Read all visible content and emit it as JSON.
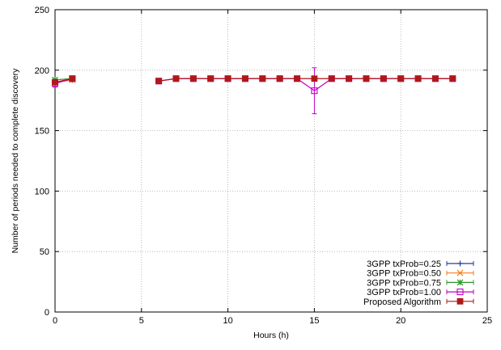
{
  "chart_data": {
    "type": "line",
    "title": "",
    "xlabel": "Hours (h)",
    "ylabel": "Number of periods needed to complete discovery",
    "xlim": [
      0,
      25
    ],
    "ylim": [
      0,
      250
    ],
    "xticks": [
      0,
      5,
      10,
      15,
      20,
      25
    ],
    "yticks": [
      0,
      50,
      100,
      150,
      200,
      250
    ],
    "grid": true,
    "legend_position": "bottom-right",
    "series": [
      {
        "name": "3GPP txProb=0.25",
        "color": "#1f3fa0",
        "marker": "plus",
        "points": [
          {
            "x": 0,
            "y": 190,
            "err": 1
          },
          {
            "x": 1,
            "y": 192,
            "err": 1
          }
        ]
      },
      {
        "name": "3GPP txProb=0.50",
        "color": "#f07f20",
        "marker": "cross",
        "points": [
          {
            "x": 0,
            "y": 190,
            "err": 1
          },
          {
            "x": 1,
            "y": 192,
            "err": 1
          }
        ]
      },
      {
        "name": "3GPP txProb=0.75",
        "color": "#2c9a2c",
        "marker": "star",
        "points": [
          {
            "x": 0,
            "y": 192,
            "err": 1
          },
          {
            "x": 1,
            "y": 193,
            "err": 1
          }
        ]
      },
      {
        "name": "3GPP txProb=1.00",
        "color": "#c000c0",
        "marker": "open-square",
        "points": [
          {
            "x": 0,
            "y": 189,
            "err": 3
          },
          {
            "x": 1,
            "y": 193,
            "err": 1
          },
          {
            "x": 6,
            "y": 191,
            "err": 1
          },
          {
            "x": 7,
            "y": 193,
            "err": 1
          },
          {
            "x": 8,
            "y": 193,
            "err": 1
          },
          {
            "x": 9,
            "y": 193,
            "err": 1
          },
          {
            "x": 10,
            "y": 193,
            "err": 1
          },
          {
            "x": 11,
            "y": 193,
            "err": 1
          },
          {
            "x": 12,
            "y": 193,
            "err": 1
          },
          {
            "x": 13,
            "y": 193,
            "err": 1
          },
          {
            "x": 14,
            "y": 193,
            "err": 1
          },
          {
            "x": 15,
            "y": 183,
            "err": 19
          },
          {
            "x": 16,
            "y": 193,
            "err": 1
          },
          {
            "x": 17,
            "y": 193,
            "err": 1
          },
          {
            "x": 18,
            "y": 193,
            "err": 1
          },
          {
            "x": 19,
            "y": 193,
            "err": 1
          },
          {
            "x": 20,
            "y": 193,
            "err": 1
          },
          {
            "x": 21,
            "y": 193,
            "err": 1
          },
          {
            "x": 22,
            "y": 193,
            "err": 1
          },
          {
            "x": 23,
            "y": 193,
            "err": 1
          }
        ]
      },
      {
        "name": "Proposed Algorithm",
        "color": "#b01818",
        "marker": "filled-square",
        "points": [
          {
            "x": 0,
            "y": 190,
            "err": 1
          },
          {
            "x": 1,
            "y": 193,
            "err": 1
          },
          {
            "x": 6,
            "y": 191,
            "err": 1
          },
          {
            "x": 7,
            "y": 193,
            "err": 1
          },
          {
            "x": 8,
            "y": 193,
            "err": 1
          },
          {
            "x": 9,
            "y": 193,
            "err": 1
          },
          {
            "x": 10,
            "y": 193,
            "err": 1
          },
          {
            "x": 11,
            "y": 193,
            "err": 1
          },
          {
            "x": 12,
            "y": 193,
            "err": 1
          },
          {
            "x": 13,
            "y": 193,
            "err": 1
          },
          {
            "x": 14,
            "y": 193,
            "err": 1
          },
          {
            "x": 15,
            "y": 193,
            "err": 1
          },
          {
            "x": 16,
            "y": 193,
            "err": 1
          },
          {
            "x": 17,
            "y": 193,
            "err": 1
          },
          {
            "x": 18,
            "y": 193,
            "err": 1
          },
          {
            "x": 19,
            "y": 193,
            "err": 1
          },
          {
            "x": 20,
            "y": 193,
            "err": 1
          },
          {
            "x": 21,
            "y": 193,
            "err": 1
          },
          {
            "x": 22,
            "y": 193,
            "err": 1
          },
          {
            "x": 23,
            "y": 193,
            "err": 1
          }
        ]
      }
    ]
  }
}
